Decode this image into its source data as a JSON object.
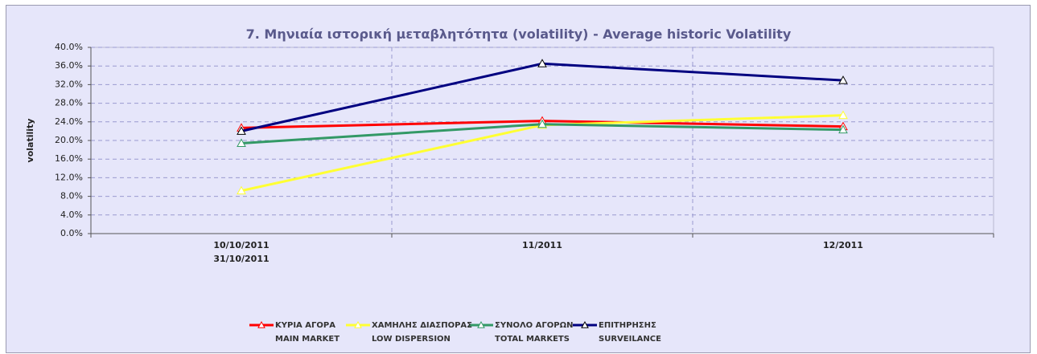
{
  "chart_data": {
    "type": "line",
    "title": "7. Μηνιαία ιστορική μεταβλητότητα (volatility) - Average historic Volatility",
    "y_label": "volatility",
    "categories": [
      "10/10/2011\n31/10/2011",
      "11/2011",
      "12/2011"
    ],
    "series": [
      {
        "name": "ΚΥΡΙΑ ΑΓΟΡΑ\nMAIN MARKET",
        "color": "#ff0000",
        "values": [
          22.7,
          24.2,
          23.0
        ]
      },
      {
        "name": "ΧΑΜΗΛΗΣ ΔΙΑΣΠΟΡΑΣ\nLOW DISPERSION",
        "color": "#ffff33",
        "values": [
          9.2,
          23.3,
          25.4
        ]
      },
      {
        "name": "ΣΥΝΟΛΟ ΑΓΟΡΩΝ\nTOTAL MARKETS",
        "color": "#339966",
        "values": [
          19.4,
          23.5,
          22.3
        ]
      },
      {
        "name": "ΕΠΙΤΗΡΗΣΗΣ\nSURVEILANCE",
        "color": "#000080",
        "values": [
          22.0,
          36.5,
          32.9
        ]
      }
    ],
    "ylim": [
      0,
      40
    ],
    "yticks": [
      {
        "value": 0,
        "label": "0.0%"
      },
      {
        "value": 4,
        "label": "4.0%"
      },
      {
        "value": 8,
        "label": "8.0%"
      },
      {
        "value": 12,
        "label": "12.0%"
      },
      {
        "value": 16,
        "label": "16.0%"
      },
      {
        "value": 20,
        "label": "20.0%"
      },
      {
        "value": 24,
        "label": "24.0%"
      },
      {
        "value": 28,
        "label": "28.0%"
      },
      {
        "value": 32,
        "label": "32.0%"
      },
      {
        "value": 36,
        "label": "36.0%"
      },
      {
        "value": 40,
        "label": "40.0%"
      }
    ],
    "grid": true,
    "legend": "bottom"
  }
}
